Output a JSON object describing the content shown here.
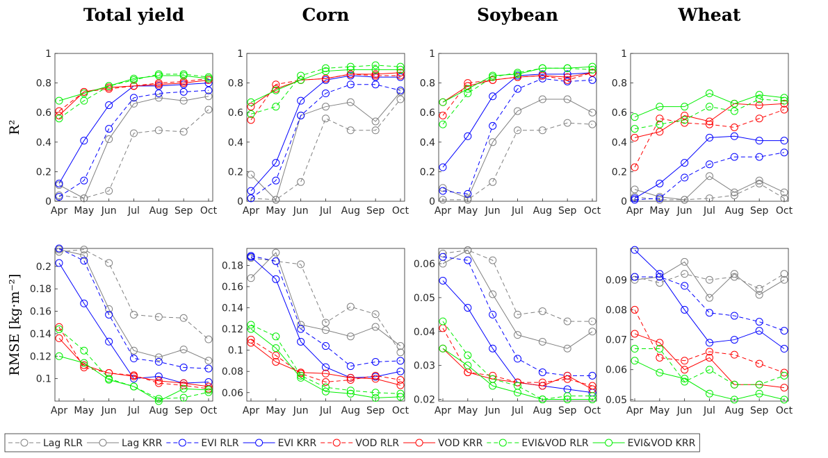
{
  "chart_data": [
    {
      "type": "line",
      "title": "Total yield",
      "ylabel": "R²",
      "categories": [
        "Apr",
        "May",
        "Jun",
        "Jul",
        "Aug",
        "Sep",
        "Oct"
      ],
      "ylim": [
        0,
        1
      ],
      "yticks": [
        0,
        0.2,
        0.4,
        0.6,
        0.8,
        1
      ],
      "series": [
        {
          "name": "Lag RLR",
          "color": "#808080",
          "dash": true,
          "values": [
            0.04,
            0.02,
            0.07,
            0.46,
            0.48,
            0.47,
            0.62
          ]
        },
        {
          "name": "Lag KRR",
          "color": "#808080",
          "dash": false,
          "values": [
            0.11,
            0.02,
            0.42,
            0.66,
            0.7,
            0.68,
            0.71
          ]
        },
        {
          "name": "EVI RLR",
          "color": "#0000ff",
          "dash": true,
          "values": [
            0.03,
            0.14,
            0.49,
            0.7,
            0.73,
            0.74,
            0.75
          ]
        },
        {
          "name": "EVI KRR",
          "color": "#0000ff",
          "dash": false,
          "values": [
            0.12,
            0.41,
            0.65,
            0.78,
            0.78,
            0.79,
            0.8
          ]
        },
        {
          "name": "VOD RLR",
          "color": "#ff0000",
          "dash": true,
          "values": [
            0.61,
            0.74,
            0.76,
            0.78,
            0.8,
            0.81,
            0.83
          ]
        },
        {
          "name": "VOD KRR",
          "color": "#ff0000",
          "dash": false,
          "values": [
            0.58,
            0.74,
            0.77,
            0.78,
            0.79,
            0.8,
            0.82
          ]
        },
        {
          "name": "EVI&VOD RLR",
          "color": "#00ee00",
          "dash": true,
          "values": [
            0.56,
            0.68,
            0.78,
            0.82,
            0.86,
            0.86,
            0.84
          ]
        },
        {
          "name": "EVI&VOD KRR",
          "color": "#00ee00",
          "dash": false,
          "values": [
            0.68,
            0.73,
            0.78,
            0.83,
            0.85,
            0.85,
            0.83
          ]
        }
      ]
    },
    {
      "type": "line",
      "title": "Corn",
      "categories": [
        "Apr",
        "May",
        "Jun",
        "Jul",
        "Aug",
        "Sep",
        "Oct"
      ],
      "ylim": [
        0,
        1
      ],
      "yticks": [
        0,
        0.2,
        0.4,
        0.6,
        0.8,
        1
      ],
      "series": [
        {
          "values": [
            0.02,
            0.01,
            0.13,
            0.56,
            0.48,
            0.48,
            0.69
          ]
        },
        {
          "values": [
            0.18,
            0.01,
            0.58,
            0.64,
            0.67,
            0.54,
            0.74
          ]
        },
        {
          "values": [
            0.02,
            0.14,
            0.58,
            0.73,
            0.79,
            0.79,
            0.75
          ]
        },
        {
          "values": [
            0.07,
            0.26,
            0.68,
            0.82,
            0.85,
            0.84,
            0.84
          ]
        },
        {
          "values": [
            0.55,
            0.79,
            0.82,
            0.83,
            0.86,
            0.85,
            0.85
          ]
        },
        {
          "values": [
            0.64,
            0.76,
            0.82,
            0.83,
            0.86,
            0.86,
            0.87
          ]
        },
        {
          "values": [
            0.59,
            0.64,
            0.85,
            0.9,
            0.91,
            0.92,
            0.91
          ]
        },
        {
          "values": [
            0.67,
            0.75,
            0.82,
            0.88,
            0.89,
            0.89,
            0.89
          ]
        }
      ]
    },
    {
      "type": "line",
      "title": "Soybean",
      "categories": [
        "Apr",
        "May",
        "Jun",
        "Jul",
        "Aug",
        "Sep",
        "Oct"
      ],
      "ylim": [
        0,
        1
      ],
      "yticks": [
        0,
        0.2,
        0.4,
        0.6,
        0.8,
        1
      ],
      "series": [
        {
          "values": [
            0.01,
            0.01,
            0.13,
            0.48,
            0.48,
            0.53,
            0.52
          ]
        },
        {
          "values": [
            0.09,
            0.02,
            0.4,
            0.61,
            0.69,
            0.69,
            0.6
          ]
        },
        {
          "values": [
            0.07,
            0.05,
            0.51,
            0.76,
            0.83,
            0.81,
            0.82
          ]
        },
        {
          "values": [
            0.23,
            0.44,
            0.71,
            0.85,
            0.86,
            0.86,
            0.87
          ]
        },
        {
          "values": [
            0.58,
            0.8,
            0.82,
            0.84,
            0.85,
            0.82,
            0.87
          ]
        },
        {
          "values": [
            0.67,
            0.78,
            0.82,
            0.84,
            0.85,
            0.84,
            0.87
          ]
        },
        {
          "values": [
            0.52,
            0.73,
            0.84,
            0.87,
            0.9,
            0.9,
            0.89
          ]
        },
        {
          "values": [
            0.67,
            0.76,
            0.85,
            0.86,
            0.9,
            0.9,
            0.91
          ]
        }
      ]
    },
    {
      "type": "line",
      "title": "Wheat",
      "categories": [
        "Apr",
        "May",
        "Jun",
        "Jul",
        "Aug",
        "Sep",
        "Oct"
      ],
      "ylim": [
        0,
        1
      ],
      "yticks": [
        0,
        0.2,
        0.4,
        0.6,
        0.8,
        1
      ],
      "series": [
        {
          "values": [
            0.03,
            0.01,
            0.01,
            0.02,
            0.04,
            0.12,
            0.02
          ]
        },
        {
          "values": [
            0.08,
            0.03,
            0.01,
            0.17,
            0.06,
            0.14,
            0.06
          ]
        },
        {
          "values": [
            0.01,
            0.02,
            0.16,
            0.25,
            0.3,
            0.3,
            0.33
          ]
        },
        {
          "values": [
            0.02,
            0.12,
            0.26,
            0.43,
            0.44,
            0.41,
            0.41
          ]
        },
        {
          "values": [
            0.23,
            0.56,
            0.53,
            0.52,
            0.5,
            0.56,
            0.62
          ]
        },
        {
          "values": [
            0.43,
            0.47,
            0.58,
            0.54,
            0.66,
            0.65,
            0.66
          ]
        },
        {
          "values": [
            0.49,
            0.52,
            0.55,
            0.64,
            0.61,
            0.69,
            0.68
          ]
        },
        {
          "values": [
            0.57,
            0.64,
            0.64,
            0.73,
            0.66,
            0.72,
            0.7
          ]
        }
      ]
    },
    {
      "type": "line",
      "ylabel": "RMSE [kg·m⁻²]",
      "categories": [
        "Apr",
        "May",
        "Jun",
        "Jul",
        "Aug",
        "Sep",
        "Oct"
      ],
      "ylim": [
        0.08,
        0.216
      ],
      "yticks": [
        0.1,
        0.12,
        0.14,
        0.16,
        0.18,
        0.2
      ],
      "series": [
        {
          "values": [
            0.213,
            0.215,
            0.203,
            0.157,
            0.155,
            0.154,
            0.135
          ]
        },
        {
          "values": [
            0.215,
            0.21,
            0.162,
            0.125,
            0.119,
            0.126,
            0.116
          ]
        },
        {
          "values": [
            0.216,
            0.205,
            0.157,
            0.118,
            0.115,
            0.11,
            0.109
          ]
        },
        {
          "values": [
            0.203,
            0.167,
            0.133,
            0.1,
            0.102,
            0.096,
            0.097
          ]
        },
        {
          "values": [
            0.146,
            0.11,
            0.105,
            0.103,
            0.096,
            0.094,
            0.091
          ]
        },
        {
          "values": [
            0.136,
            0.112,
            0.105,
            0.102,
            0.098,
            0.096,
            0.093
          ]
        },
        {
          "values": [
            0.144,
            0.125,
            0.1,
            0.093,
            0.082,
            0.083,
            0.088
          ]
        },
        {
          "values": [
            0.12,
            0.114,
            0.099,
            0.093,
            0.08,
            0.091,
            0.09
          ]
        }
      ]
    },
    {
      "type": "line",
      "categories": [
        "Apr",
        "May",
        "Jun",
        "Jul",
        "Aug",
        "Sep",
        "Oct"
      ],
      "ylim": [
        0.052,
        0.196
      ],
      "yticks": [
        0.06,
        0.08,
        0.1,
        0.12,
        0.14,
        0.16,
        0.18
      ],
      "series": [
        {
          "values": [
            0.187,
            0.184,
            0.181,
            0.126,
            0.141,
            0.134,
            0.098
          ]
        },
        {
          "values": [
            0.168,
            0.192,
            0.124,
            0.119,
            0.113,
            0.122,
            0.104
          ]
        },
        {
          "values": [
            0.189,
            0.184,
            0.12,
            0.104,
            0.085,
            0.089,
            0.09
          ]
        },
        {
          "values": [
            0.188,
            0.167,
            0.108,
            0.084,
            0.074,
            0.075,
            0.08
          ]
        },
        {
          "values": [
            0.11,
            0.095,
            0.078,
            0.07,
            0.072,
            0.076,
            0.072
          ]
        },
        {
          "values": [
            0.107,
            0.089,
            0.079,
            0.078,
            0.074,
            0.073,
            0.067
          ]
        },
        {
          "values": [
            0.124,
            0.113,
            0.076,
            0.065,
            0.062,
            0.06,
            0.059
          ]
        },
        {
          "values": [
            0.12,
            0.102,
            0.074,
            0.061,
            0.059,
            0.055,
            0.056
          ]
        }
      ]
    },
    {
      "type": "line",
      "categories": [
        "Apr",
        "May",
        "Jun",
        "Jul",
        "Aug",
        "Sep",
        "Oct"
      ],
      "ylim": [
        0.0195,
        0.0645
      ],
      "yticks": [
        0.02,
        0.03,
        0.04,
        0.05,
        0.06
      ],
      "series": [
        {
          "values": [
            0.063,
            0.064,
            0.061,
            0.045,
            0.046,
            0.043,
            0.043
          ]
        },
        {
          "values": [
            0.06,
            0.064,
            0.051,
            0.039,
            0.037,
            0.035,
            0.04
          ]
        },
        {
          "values": [
            0.062,
            0.061,
            0.045,
            0.032,
            0.028,
            0.027,
            0.027
          ]
        },
        {
          "values": [
            0.055,
            0.047,
            0.035,
            0.025,
            0.024,
            0.023,
            0.022
          ]
        },
        {
          "values": [
            0.041,
            0.028,
            0.027,
            0.025,
            0.025,
            0.026,
            0.024
          ]
        },
        {
          "values": [
            0.035,
            0.028,
            0.026,
            0.025,
            0.024,
            0.027,
            0.023
          ]
        },
        {
          "values": [
            0.043,
            0.033,
            0.026,
            0.024,
            0.02,
            0.021,
            0.021
          ]
        },
        {
          "values": [
            0.035,
            0.03,
            0.024,
            0.022,
            0.02,
            0.02,
            0.02
          ]
        }
      ]
    },
    {
      "type": "line",
      "categories": [
        "Apr",
        "May",
        "Jun",
        "Jul",
        "Aug",
        "Sep",
        "Oct"
      ],
      "ylim": [
        0.0495,
        0.1005
      ],
      "yticks": [
        0.05,
        0.06,
        0.07,
        0.08,
        0.09
      ],
      "series": [
        {
          "values": [
            0.091,
            0.089,
            0.092,
            0.09,
            0.091,
            0.087,
            0.092
          ]
        },
        {
          "values": [
            0.09,
            0.091,
            0.096,
            0.084,
            0.092,
            0.085,
            0.09
          ]
        },
        {
          "values": [
            0.091,
            0.091,
            0.088,
            0.079,
            0.078,
            0.076,
            0.073
          ]
        },
        {
          "values": [
            0.1,
            0.092,
            0.08,
            0.069,
            0.07,
            0.073,
            0.067
          ]
        },
        {
          "values": [
            0.08,
            0.064,
            0.063,
            0.066,
            0.065,
            0.062,
            0.059
          ]
        },
        {
          "values": [
            0.072,
            0.069,
            0.06,
            0.064,
            0.055,
            0.055,
            0.054
          ]
        },
        {
          "values": [
            0.067,
            0.067,
            0.056,
            0.06,
            0.055,
            0.055,
            0.058
          ]
        },
        {
          "values": [
            0.063,
            0.059,
            0.057,
            0.052,
            0.05,
            0.052,
            0.05
          ]
        }
      ]
    }
  ]
}
